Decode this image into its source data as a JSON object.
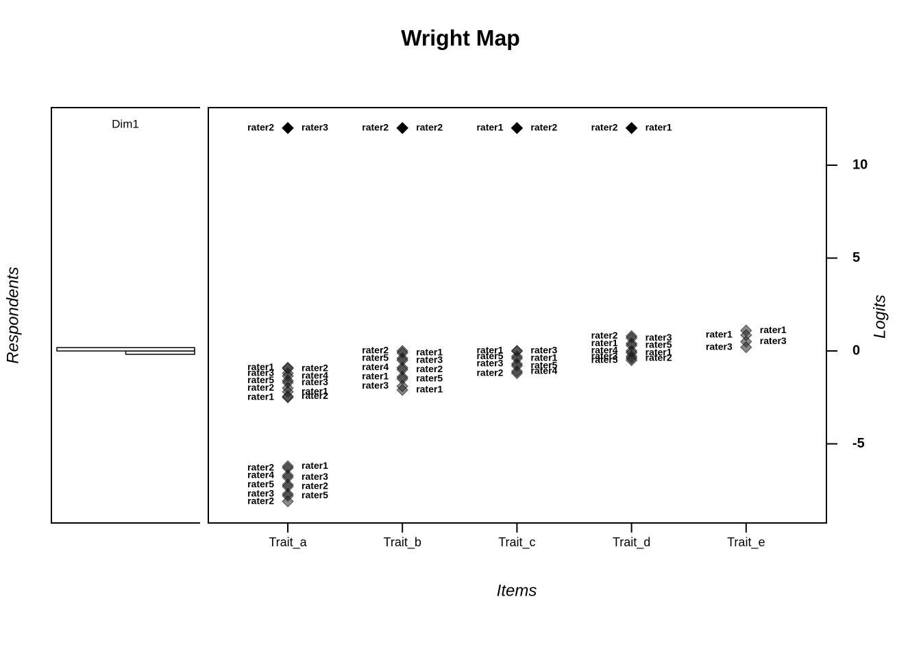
{
  "chart_data": {
    "type": "wright_map",
    "title": "Wright Map",
    "y_label": "Logits",
    "x_label": "Items",
    "respondents_label": "Respondents",
    "ylim": [
      -9.26,
      13.1
    ],
    "yticks": [
      10,
      5,
      0,
      -5
    ],
    "respondents": {
      "label": "Dim1",
      "bins": [
        -0.18,
        0,
        0.18
      ],
      "counts": [
        1,
        2
      ],
      "xlim": [
        0,
        2
      ]
    },
    "categories": [
      "Trait_a",
      "Trait_b",
      "Trait_c",
      "Trait_d",
      "Trait_e"
    ],
    "items": [
      {
        "points": [
          {
            "value": 12,
            "label": "rater2",
            "side": "left"
          },
          {
            "value": 12,
            "label": "rater3",
            "side": "right"
          },
          {
            "value": -0.9,
            "label": "rater1",
            "side": "left"
          },
          {
            "value": -0.95,
            "label": "rater2",
            "side": "right"
          },
          {
            "value": -1.2,
            "label": "rater3",
            "side": "left"
          },
          {
            "value": -1.35,
            "label": "rater4",
            "side": "right"
          },
          {
            "value": -1.6,
            "label": "rater5",
            "side": "left"
          },
          {
            "value": -1.7,
            "label": "rater3",
            "side": "right"
          },
          {
            "value": -2.0,
            "label": "rater2",
            "side": "left"
          },
          {
            "value": -2.2,
            "label": "rater1",
            "side": "right"
          },
          {
            "value": -2.5,
            "label": "rater1",
            "side": "left"
          },
          {
            "value": -2.45,
            "label": "rater2",
            "side": "right"
          },
          {
            "value": -6.3,
            "label": "rater2",
            "side": "left"
          },
          {
            "value": -6.2,
            "label": "rater1",
            "side": "right"
          },
          {
            "value": -6.7,
            "label": "rater4",
            "side": "left"
          },
          {
            "value": -6.8,
            "label": "rater3",
            "side": "right"
          },
          {
            "value": -7.2,
            "label": "rater5",
            "side": "left"
          },
          {
            "value": -7.3,
            "label": "rater2",
            "side": "right"
          },
          {
            "value": -7.7,
            "label": "rater3",
            "side": "left"
          },
          {
            "value": -7.8,
            "label": "rater5",
            "side": "right"
          },
          {
            "value": -8.1,
            "label": "rater2",
            "side": "left"
          }
        ]
      },
      {
        "points": [
          {
            "value": 12,
            "label": "rater2",
            "side": "left"
          },
          {
            "value": 12,
            "label": "rater2",
            "side": "right"
          },
          {
            "value": 0.0,
            "label": "rater2",
            "side": "left"
          },
          {
            "value": -0.1,
            "label": "rater1",
            "side": "right"
          },
          {
            "value": -0.4,
            "label": "rater5",
            "side": "left"
          },
          {
            "value": -0.5,
            "label": "rater3",
            "side": "right"
          },
          {
            "value": -0.9,
            "label": "rater4",
            "side": "left"
          },
          {
            "value": -1.0,
            "label": "rater2",
            "side": "right"
          },
          {
            "value": -1.4,
            "label": "rater1",
            "side": "left"
          },
          {
            "value": -1.5,
            "label": "rater5",
            "side": "right"
          },
          {
            "value": -1.9,
            "label": "rater3",
            "side": "left"
          },
          {
            "value": -2.1,
            "label": "rater1",
            "side": "right"
          }
        ]
      },
      {
        "points": [
          {
            "value": 12,
            "label": "rater1",
            "side": "left"
          },
          {
            "value": 12,
            "label": "rater2",
            "side": "right"
          },
          {
            "value": 0.0,
            "label": "rater1",
            "side": "left"
          },
          {
            "value": 0.0,
            "label": "rater3",
            "side": "right"
          },
          {
            "value": -0.3,
            "label": "rater5",
            "side": "left"
          },
          {
            "value": -0.4,
            "label": "rater1",
            "side": "right"
          },
          {
            "value": -0.7,
            "label": "rater3",
            "side": "left"
          },
          {
            "value": -0.8,
            "label": "rater5",
            "side": "right"
          },
          {
            "value": -1.2,
            "label": "rater2",
            "side": "left"
          },
          {
            "value": -1.1,
            "label": "rater4",
            "side": "right"
          }
        ]
      },
      {
        "points": [
          {
            "value": 12,
            "label": "rater2",
            "side": "left"
          },
          {
            "value": 12,
            "label": "rater1",
            "side": "right"
          },
          {
            "value": 0.8,
            "label": "rater2",
            "side": "left"
          },
          {
            "value": 0.7,
            "label": "rater3",
            "side": "right"
          },
          {
            "value": 0.4,
            "label": "rater1",
            "side": "left"
          },
          {
            "value": 0.3,
            "label": "rater5",
            "side": "right"
          },
          {
            "value": 0.0,
            "label": "rater4",
            "side": "left"
          },
          {
            "value": -0.1,
            "label": "rater1",
            "side": "right"
          },
          {
            "value": -0.3,
            "label": "rater3",
            "side": "left"
          },
          {
            "value": -0.4,
            "label": "rater2",
            "side": "right"
          },
          {
            "value": -0.5,
            "label": "rater5",
            "side": "left"
          }
        ]
      },
      {
        "points": [
          {
            "value": 1.1,
            "label": "rater1",
            "side": "right"
          },
          {
            "value": 0.85,
            "label": "rater1",
            "side": "left"
          },
          {
            "value": 0.5,
            "label": "rater3",
            "side": "right"
          },
          {
            "value": 0.2,
            "label": "rater3",
            "side": "left"
          }
        ]
      }
    ]
  }
}
